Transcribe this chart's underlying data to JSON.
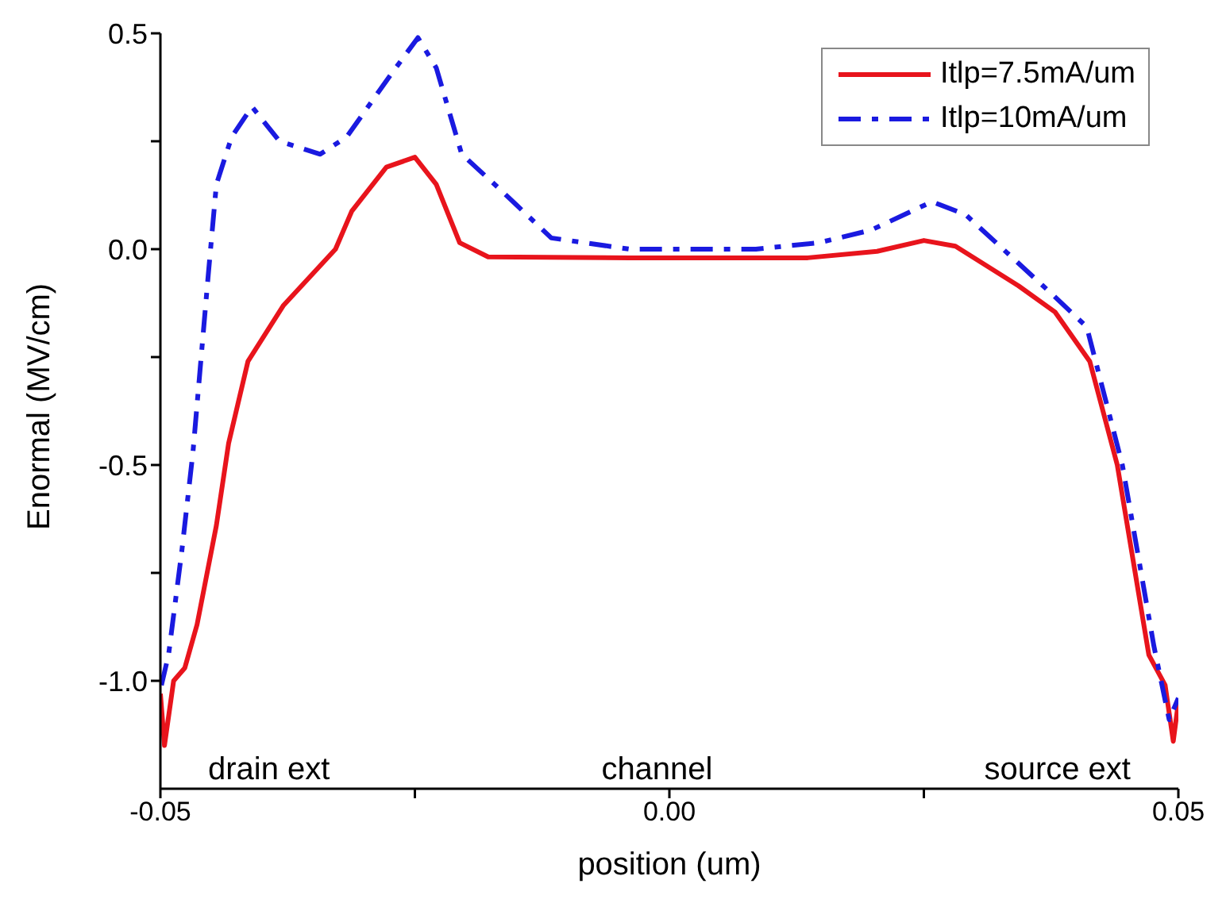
{
  "chart_data": {
    "type": "line",
    "xlabel": "position (um)",
    "ylabel": "Enormal (MV/cm)",
    "xlim": [
      -0.05,
      0.05
    ],
    "xticks": [
      {
        "value": -0.05,
        "label": "-0.05"
      },
      {
        "value": -0.025,
        "label": null
      },
      {
        "value": 0,
        "label": "0.00"
      },
      {
        "value": 0.025,
        "label": null
      },
      {
        "value": 0.05,
        "label": "0.05"
      }
    ],
    "ylim": [
      -1.25,
      0.5
    ],
    "yticks": [
      {
        "value": -1.0,
        "label": "-1.0"
      },
      {
        "value": -0.75,
        "label": null
      },
      {
        "value": -0.5,
        "label": "-0.5"
      },
      {
        "value": -0.25,
        "label": null
      },
      {
        "value": 0,
        "label": "0.0"
      },
      {
        "value": 0.25,
        "label": null
      },
      {
        "value": 0.5,
        "label": "0.5"
      }
    ],
    "grid": false,
    "legend": "top right",
    "marker": "none",
    "annotations": [
      "drain ext",
      "channel",
      "source ext"
    ],
    "series": [
      {
        "name": "Itlp=7.5mA/um",
        "color": "#e8141c",
        "line_style": "solid",
        "x": [
          -0.05,
          -0.0496,
          -0.0487,
          -0.0476,
          -0.0464,
          -0.0445,
          -0.0433,
          -0.0414,
          -0.0379,
          -0.0328,
          -0.0312,
          -0.0278,
          -0.025,
          -0.0229,
          -0.0206,
          -0.0178,
          -0.0039,
          0.0136,
          0.0204,
          0.025,
          0.0281,
          0.0343,
          0.0379,
          0.0413,
          0.044,
          0.0471,
          0.0487,
          0.0495,
          0.05
        ],
        "values": [
          -1.03,
          -1.15,
          -1.0,
          -0.97,
          -0.87,
          -0.64,
          -0.45,
          -0.26,
          -0.13,
          0.0,
          0.088,
          0.19,
          0.213,
          0.15,
          0.015,
          -0.018,
          -0.02,
          -0.02,
          -0.005,
          0.02,
          0.007,
          -0.085,
          -0.146,
          -0.26,
          -0.5,
          -0.94,
          -1.01,
          -1.14,
          -1.05
        ]
      },
      {
        "name": "Itlp=10mA/um",
        "color": "#1a1ae0",
        "line_style": "dashed",
        "x": [
          -0.0499,
          -0.0492,
          -0.0479,
          -0.0468,
          -0.0453,
          -0.0445,
          -0.043,
          -0.041,
          -0.0383,
          -0.0343,
          -0.0317,
          -0.0275,
          -0.0247,
          -0.0229,
          -0.0204,
          -0.0167,
          -0.0116,
          -0.0039,
          0.0085,
          0.0147,
          0.0198,
          0.0258,
          0.0291,
          0.0374,
          0.041,
          0.0445,
          0.0476,
          0.0491,
          0.05
        ],
        "values": [
          -1.01,
          -0.94,
          -0.7,
          -0.47,
          -0.06,
          0.15,
          0.26,
          0.33,
          0.25,
          0.22,
          0.26,
          0.4,
          0.49,
          0.42,
          0.22,
          0.14,
          0.026,
          0.0,
          0.0,
          0.015,
          0.044,
          0.11,
          0.08,
          -0.1,
          -0.18,
          -0.5,
          -0.92,
          -1.09,
          -1.04
        ]
      }
    ]
  }
}
